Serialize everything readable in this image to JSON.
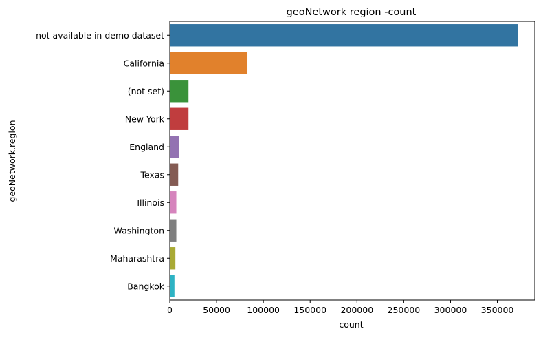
{
  "chart_data": {
    "type": "bar",
    "orientation": "horizontal",
    "title": "geoNetwork region -count",
    "xlabel": "count",
    "ylabel": "geoNetwork.region",
    "xlim": [
      0,
      390000
    ],
    "xticks": [
      0,
      50000,
      100000,
      150000,
      200000,
      250000,
      300000,
      350000
    ],
    "grid": false,
    "categories": [
      "not available in demo dataset",
      "California",
      "(not set)",
      "New York",
      "England",
      "Texas",
      "Illinois",
      "Washington",
      "Maharashtra",
      "Bangkok"
    ],
    "values": [
      372000,
      83000,
      20000,
      20000,
      10000,
      9000,
      7000,
      7000,
      6000,
      5000
    ],
    "colors": [
      "#3274a1",
      "#e1812c",
      "#3a923a",
      "#c03d3e",
      "#9372b2",
      "#845b53",
      "#d684bd",
      "#7f7f7f",
      "#a9aa35",
      "#2eb3c4"
    ]
  }
}
